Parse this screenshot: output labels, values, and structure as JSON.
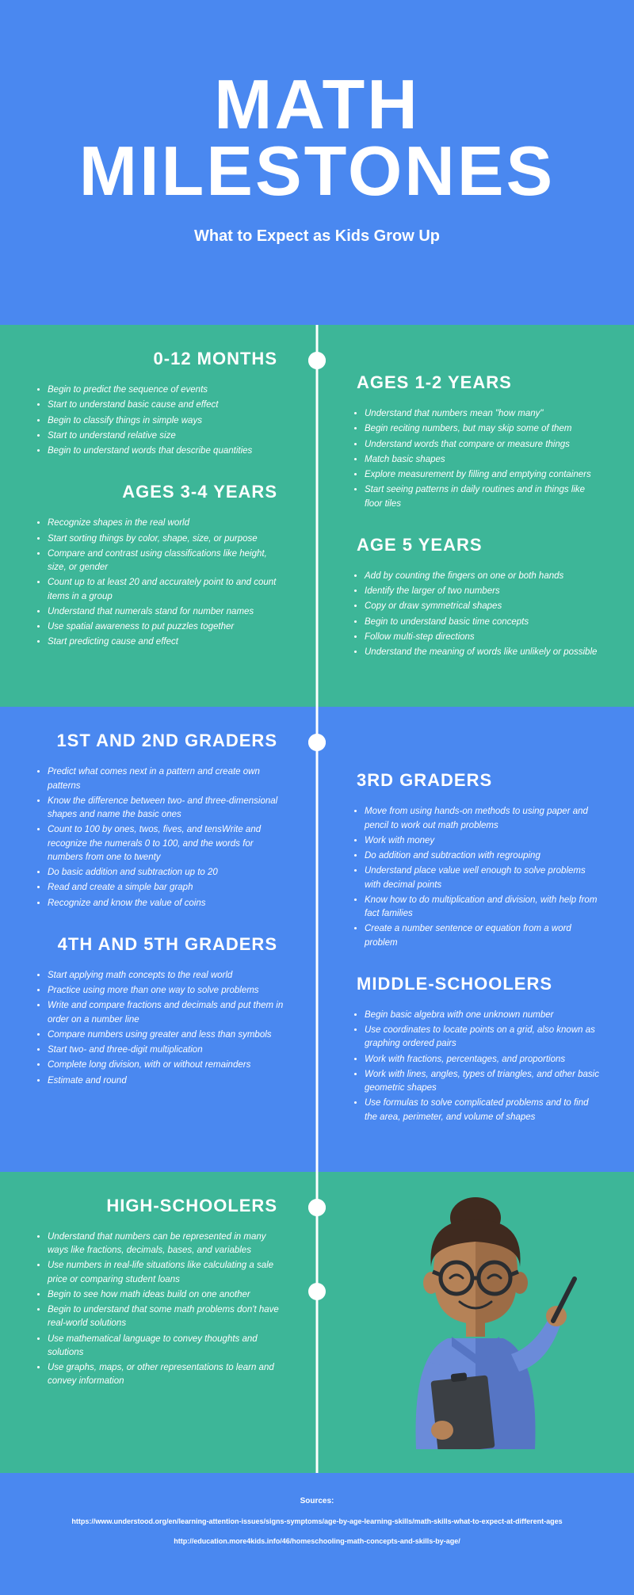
{
  "header": {
    "title_line1": "MATH",
    "title_line2": "MILESTONES",
    "subtitle": "What to Expect as Kids Grow Up"
  },
  "colors": {
    "blue": "#4a88f0",
    "green": "#3db698",
    "white": "#ffffff",
    "skin": "#b58257",
    "skin_shadow": "#9c6c46",
    "hair": "#3f2a1f",
    "shirt": "#6b8bd9",
    "shirt_shadow": "#5675c4",
    "clipboard": "#3b3f44",
    "glasses": "#2a2d31"
  },
  "sections": {
    "months012": {
      "title": "0-12 MONTHS",
      "items": [
        "Begin to predict the sequence of events",
        "Start to understand basic cause and effect",
        "Begin to classify things in simple ways",
        "Start to understand relative size",
        "Begin to understand words that describe quantities"
      ]
    },
    "ages34": {
      "title": "AGES 3-4 YEARS",
      "items": [
        "Recognize shapes in the real world",
        "Start sorting things by color, shape, size, or purpose",
        "Compare and contrast using classifications like height, size, or gender",
        "Count up to at least 20 and accurately point to and count items in a group",
        "Understand that numerals stand for number names",
        "Use spatial awareness to put puzzles together",
        "Start predicting cause and effect"
      ]
    },
    "ages12": {
      "title": "AGES 1-2 YEARS",
      "items": [
        "Understand that numbers mean \"how many\"",
        "Begin reciting numbers, but may skip some of them",
        "Understand words that compare or measure things",
        "Match basic shapes",
        "Explore measurement by filling and emptying containers",
        "Start seeing patterns in daily routines and in things like floor tiles"
      ]
    },
    "age5": {
      "title": "AGE 5 YEARS",
      "items": [
        "Add by counting the fingers on one or both hands",
        "Identify the larger of two numbers",
        "Copy or draw symmetrical shapes",
        "Begin to understand basic time concepts",
        "Follow multi-step directions",
        "Understand the meaning of words like unlikely or possible"
      ]
    },
    "grade12": {
      "title": "1ST AND 2ND GRADERS",
      "items": [
        "Predict what comes next in a pattern and create own patterns",
        "Know the difference between two- and three-dimensional shapes and name the basic ones",
        "Count to 100 by ones, twos, fives, and tensWrite and recognize the numerals 0 to 100, and the words for numbers from one to twenty",
        "Do basic addition and subtraction up to 20",
        "Read and create a simple bar graph",
        "Recognize and know the value of coins"
      ]
    },
    "grade45": {
      "title": "4TH AND 5TH GRADERS",
      "items": [
        "Start applying math concepts to the real world",
        "Practice using more than one way to solve problems",
        "Write and compare fractions and decimals and put them in order on a number line",
        "Compare numbers using greater and less than symbols",
        "Start two- and three-digit multiplication",
        "Complete long division, with or without remainders",
        "Estimate and round"
      ]
    },
    "grade3": {
      "title": "3RD GRADERS",
      "items": [
        "Move from using hands-on methods to using paper and pencil to work out math problems",
        "Work with money",
        "Do addition and subtraction with regrouping",
        "Understand place value well enough to solve problems with decimal points",
        "Know how to do multiplication and division, with help from fact families",
        "Create a number sentence or equation from a word problem"
      ]
    },
    "middle": {
      "title": "MIDDLE-SCHOOLERS",
      "items": [
        "Begin basic algebra with one unknown number",
        "Use coordinates to locate points on a grid, also known as graphing ordered pairs",
        "Work with fractions, percentages, and proportions",
        "Work with lines, angles, types of triangles, and other basic geometric shapes",
        "Use formulas to solve complicated problems and to find the area, perimeter, and volume of shapes"
      ]
    },
    "high": {
      "title": "HIGH-SCHOOLERS",
      "items": [
        "Understand that numbers can be represented in many ways like fractions, decimals, bases, and variables",
        "Use numbers in real-life situations like calculating a sale price or comparing student loans",
        "Begin to see how math ideas build on one another",
        "Begin to understand that some math problems don't have real-world solutions",
        "Use mathematical language to convey thoughts and solutions",
        "Use graphs, maps, or other representations to learn and convey information"
      ]
    }
  },
  "footer": {
    "label": "Sources:",
    "sources": [
      "https://www.understood.org/en/learning-attention-issues/signs-symptoms/age-by-age-learning-skills/math-skills-what-to-expect-at-different-ages",
      "http://education.more4kids.info/46/homeschooling-math-concepts-and-skills-by-age/"
    ]
  }
}
